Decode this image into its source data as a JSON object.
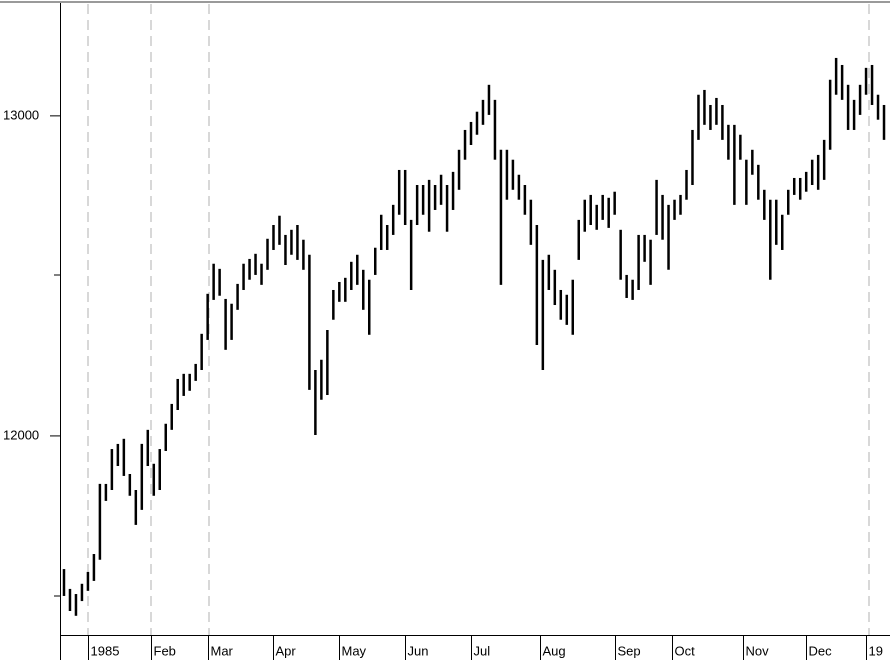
{
  "chart_data": {
    "type": "range",
    "x": [
      1,
      3,
      5,
      7,
      9,
      11,
      13,
      15,
      17,
      19,
      21,
      23,
      25,
      27,
      29,
      31,
      33,
      35,
      37,
      39,
      41,
      43,
      45,
      47,
      49,
      51,
      53,
      55,
      57,
      59,
      61,
      63,
      65,
      67,
      69,
      71,
      73,
      75,
      77,
      79,
      81,
      83,
      85,
      87,
      89,
      91,
      93,
      95,
      97,
      99,
      101,
      103,
      105,
      107,
      109,
      111,
      113,
      115,
      117,
      119,
      121,
      123,
      125,
      127,
      129,
      131,
      133,
      135,
      137,
      139,
      141,
      143,
      145,
      147,
      149,
      151,
      153,
      155,
      157,
      159,
      161,
      163,
      165,
      167,
      169,
      171,
      173,
      175,
      177,
      179,
      181,
      183,
      185,
      187,
      189,
      191,
      193,
      195,
      197,
      199,
      201,
      203,
      205,
      207,
      209,
      211,
      213,
      215,
      217,
      219,
      221,
      223,
      225,
      227,
      229,
      231,
      233,
      235,
      237,
      239,
      241,
      243,
      245,
      247,
      249,
      251,
      253,
      255,
      257,
      259,
      261,
      263,
      265,
      267,
      269,
      271,
      273,
      275
    ],
    "high": [
      11584,
      11522,
      11506,
      11538,
      11575,
      11631,
      11850,
      11850,
      11959,
      11975,
      11991,
      11881,
      11831,
      11975,
      12019,
      11913,
      11959,
      12038,
      12100,
      12178,
      12194,
      12194,
      12225,
      12319,
      12444,
      12538,
      12522,
      12428,
      12413,
      12475,
      12538,
      12553,
      12569,
      12538,
      12616,
      12659,
      12688,
      12628,
      12644,
      12659,
      12613,
      12566,
      12206,
      12238,
      12331,
      12456,
      12481,
      12494,
      12544,
      12566,
      12519,
      12488,
      12588,
      12691,
      12659,
      12722,
      12831,
      12831,
      12675,
      12784,
      12784,
      12800,
      12784,
      12816,
      12784,
      12825,
      12894,
      12956,
      12981,
      13013,
      13050,
      13097,
      13050,
      12894,
      12894,
      12863,
      12816,
      12784,
      12738,
      12659,
      12550,
      12566,
      12519,
      12456,
      12441,
      12488,
      12675,
      12738,
      12753,
      12722,
      12753,
      12744,
      12763,
      12644,
      12503,
      12488,
      12628,
      12628,
      12613,
      12800,
      12753,
      12722,
      12738,
      12753,
      12831,
      12956,
      13066,
      13081,
      13034,
      13056,
      13034,
      12972,
      12972,
      12941,
      12863,
      12894,
      12847,
      12769,
      12738,
      12738,
      12691,
      12769,
      12806,
      12806,
      12825,
      12863,
      12878,
      12925,
      13113,
      13181,
      13159,
      13097,
      13050,
      13097,
      13150,
      13159,
      13066,
      13034
    ],
    "low": [
      11500,
      11453,
      11438,
      11484,
      11516,
      11547,
      11613,
      11797,
      11831,
      11906,
      11875,
      11813,
      11722,
      11769,
      11906,
      11813,
      11831,
      11953,
      12019,
      12081,
      12125,
      12141,
      12172,
      12206,
      12300,
      12425,
      12438,
      12269,
      12300,
      12394,
      12456,
      12488,
      12503,
      12472,
      12519,
      12581,
      12597,
      12534,
      12566,
      12550,
      12519,
      12144,
      12003,
      12113,
      12128,
      12363,
      12419,
      12419,
      12456,
      12472,
      12394,
      12316,
      12503,
      12581,
      12581,
      12628,
      12691,
      12659,
      12456,
      12659,
      12691,
      12638,
      12706,
      12722,
      12638,
      12706,
      12769,
      12863,
      12909,
      12941,
      12972,
      13003,
      12863,
      12472,
      12738,
      12769,
      12738,
      12691,
      12597,
      12284,
      12206,
      12456,
      12409,
      12363,
      12347,
      12316,
      12550,
      12638,
      12659,
      12644,
      12675,
      12650,
      12691,
      12488,
      12431,
      12425,
      12456,
      12544,
      12472,
      12628,
      12613,
      12519,
      12675,
      12691,
      12738,
      12784,
      12925,
      12972,
      12956,
      12972,
      12925,
      12863,
      12722,
      12863,
      12722,
      12816,
      12738,
      12675,
      12488,
      12597,
      12581,
      12691,
      12753,
      12738,
      12763,
      12784,
      12769,
      12800,
      12894,
      13066,
      13050,
      12956,
      12956,
      13003,
      13066,
      13034,
      12988,
      12925
    ],
    "color": "#000000",
    "xlim": [
      0,
      277
    ],
    "ylim": [
      11378,
      13362
    ],
    "yticks": [
      12000,
      13000
    ],
    "xticks": [
      {
        "value": 9,
        "label": "1985"
      },
      {
        "value": 30,
        "label": "Feb"
      },
      {
        "value": 49,
        "label": "Mar"
      },
      {
        "value": 71,
        "label": "Apr"
      },
      {
        "value": 93,
        "label": "May"
      },
      {
        "value": 115,
        "label": "Jun"
      },
      {
        "value": 137,
        "label": "Jul"
      },
      {
        "value": 160,
        "label": "Aug"
      },
      {
        "value": 185,
        "label": "Sep"
      },
      {
        "value": 204,
        "label": "Oct"
      },
      {
        "value": 228,
        "label": "Nov"
      },
      {
        "value": 249,
        "label": "Dec"
      },
      {
        "value": 269,
        "label": "19"
      }
    ]
  }
}
